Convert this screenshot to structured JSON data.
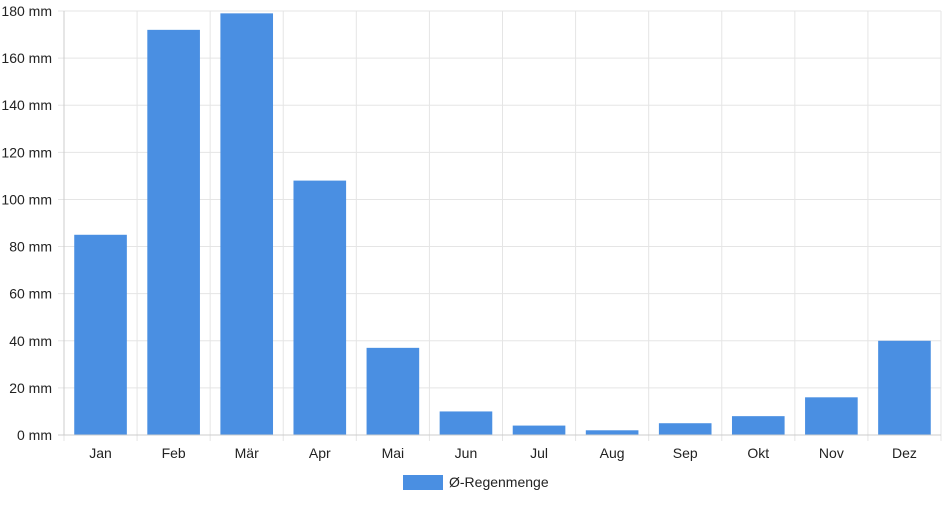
{
  "colors": {
    "bar": "#4a8fe2",
    "grid": "#e5e5e5",
    "axis": "#cccccc",
    "text": "#222222"
  },
  "chart_data": {
    "type": "bar",
    "categories": [
      "Jan",
      "Feb",
      "Mär",
      "Apr",
      "Mai",
      "Jun",
      "Jul",
      "Aug",
      "Sep",
      "Okt",
      "Nov",
      "Dez"
    ],
    "series": [
      {
        "name": "Ø-Regenmenge",
        "values": [
          85,
          172,
          179,
          108,
          37,
          10,
          4,
          2,
          5,
          8,
          16,
          40
        ]
      }
    ],
    "ylim": [
      0,
      180
    ],
    "ytick_step": 20,
    "ytick_labels": [
      "0 mm",
      "20 mm",
      "40 mm",
      "60 mm",
      "80 mm",
      "100 mm",
      "120 mm",
      "140 mm",
      "160 mm",
      "180 mm"
    ],
    "grid": true,
    "legend_position": "bottom-center"
  }
}
